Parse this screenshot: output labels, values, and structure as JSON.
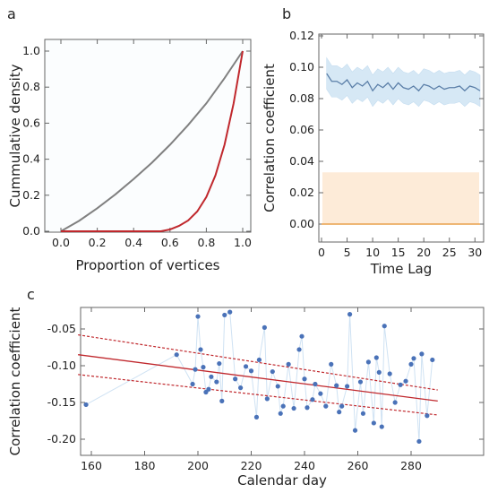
{
  "chart_data": [
    {
      "panel": "a",
      "type": "line",
      "xlabel": "Proportion of vertices",
      "ylabel": "Cummulative density",
      "xlim": [
        0,
        1
      ],
      "ylim": [
        0,
        1
      ],
      "xticks": [
        "0.0",
        "0.2",
        "0.4",
        "0.6",
        "0.8",
        "1.0"
      ],
      "yticks": [
        "0.0",
        "0.2",
        "0.4",
        "0.6",
        "0.8",
        "1.0"
      ],
      "series": [
        {
          "color": "#808080",
          "x": [
            0,
            0.1,
            0.2,
            0.3,
            0.4,
            0.5,
            0.6,
            0.7,
            0.8,
            0.9,
            1.0
          ],
          "y": [
            0,
            0.058,
            0.128,
            0.205,
            0.29,
            0.38,
            0.48,
            0.59,
            0.71,
            0.85,
            1.0
          ]
        },
        {
          "color": "#c0282d",
          "x": [
            0,
            0.55,
            0.6,
            0.65,
            0.7,
            0.75,
            0.8,
            0.85,
            0.9,
            0.95,
            1.0
          ],
          "y": [
            0,
            0.0,
            0.01,
            0.03,
            0.06,
            0.11,
            0.19,
            0.31,
            0.48,
            0.71,
            1.0
          ]
        }
      ]
    },
    {
      "panel": "b",
      "type": "line",
      "xlabel": "Time Lag",
      "ylabel": "Correlation coefficient",
      "xlim": [
        0,
        31
      ],
      "ylim": [
        -0.005,
        0.12
      ],
      "xticks": [
        "0",
        "5",
        "10",
        "15",
        "20",
        "25",
        "30"
      ],
      "yticks": [
        "0.00",
        "0.02",
        "0.04",
        "0.06",
        "0.08",
        "0.10",
        "0.12"
      ],
      "series": [
        {
          "color": "#5b7fa8",
          "band_color": "#d6e8f5",
          "x": [
            1,
            2,
            3,
            4,
            5,
            6,
            7,
            8,
            9,
            10,
            11,
            12,
            13,
            14,
            15,
            16,
            17,
            18,
            19,
            20,
            21,
            22,
            23,
            24,
            25,
            26,
            27,
            28,
            29,
            30,
            31
          ],
          "y": [
            0.096,
            0.091,
            0.091,
            0.089,
            0.092,
            0.087,
            0.09,
            0.088,
            0.091,
            0.085,
            0.089,
            0.087,
            0.09,
            0.086,
            0.09,
            0.087,
            0.086,
            0.088,
            0.085,
            0.089,
            0.088,
            0.086,
            0.088,
            0.086,
            0.087,
            0.087,
            0.088,
            0.085,
            0.088,
            0.087,
            0.085
          ],
          "band": [
            0.01,
            0.01
          ]
        },
        {
          "color": "#e8a04a",
          "band_color": "#fdebd8",
          "x": [
            0,
            31
          ],
          "y": [
            0.0,
            0.0
          ],
          "band_upper": 0.033
        }
      ]
    },
    {
      "panel": "c",
      "type": "scatter",
      "xlabel": "Calendar day",
      "ylabel": "Correlation coefficient",
      "xlim": [
        155,
        290
      ],
      "ylim": [
        -0.21,
        -0.02
      ],
      "xticks": [
        "160",
        "180",
        "200",
        "220",
        "240",
        "260",
        "280"
      ],
      "yticks": [
        "-0.05",
        "-0.10",
        "-0.15",
        "-0.20"
      ],
      "points_color": "#4a72b8",
      "x": [
        158,
        192,
        198,
        199,
        200,
        201,
        202,
        203,
        204,
        205,
        207,
        208,
        209,
        210,
        212,
        214,
        216,
        218,
        220,
        222,
        223,
        225,
        226,
        228,
        230,
        231,
        232,
        234,
        236,
        238,
        239,
        240,
        241,
        243,
        244,
        246,
        248,
        250,
        252,
        253,
        254,
        256,
        257,
        259,
        261,
        262,
        264,
        266,
        267,
        268,
        269,
        270,
        272,
        274,
        276,
        278,
        280,
        281,
        283,
        284,
        286,
        288
      ],
      "y": [
        -0.153,
        -0.085,
        -0.125,
        -0.105,
        -0.033,
        -0.078,
        -0.102,
        -0.136,
        -0.132,
        -0.115,
        -0.122,
        -0.097,
        -0.148,
        -0.031,
        -0.027,
        -0.118,
        -0.13,
        -0.101,
        -0.107,
        -0.17,
        -0.092,
        -0.048,
        -0.145,
        -0.108,
        -0.128,
        -0.165,
        -0.155,
        -0.098,
        -0.158,
        -0.078,
        -0.06,
        -0.118,
        -0.157,
        -0.146,
        -0.125,
        -0.138,
        -0.155,
        -0.098,
        -0.127,
        -0.163,
        -0.155,
        -0.128,
        -0.03,
        -0.188,
        -0.122,
        -0.165,
        -0.095,
        -0.178,
        -0.089,
        -0.109,
        -0.183,
        -0.046,
        -0.111,
        -0.15,
        -0.126,
        -0.121,
        -0.098,
        -0.09,
        -0.203,
        -0.084,
        -0.168,
        -0.092
      ],
      "fit": {
        "color": "#c0282d",
        "x": [
          155,
          290
        ],
        "y": [
          -0.085,
          -0.148
        ]
      },
      "ci_upper": {
        "color": "#c0282d",
        "x": [
          155,
          290
        ],
        "y": [
          -0.058,
          -0.133
        ]
      },
      "ci_lower": {
        "color": "#c0282d",
        "x": [
          155,
          290
        ],
        "y": [
          -0.112,
          -0.167
        ]
      }
    }
  ],
  "panels": {
    "a": "a",
    "b": "b",
    "c": "c"
  }
}
